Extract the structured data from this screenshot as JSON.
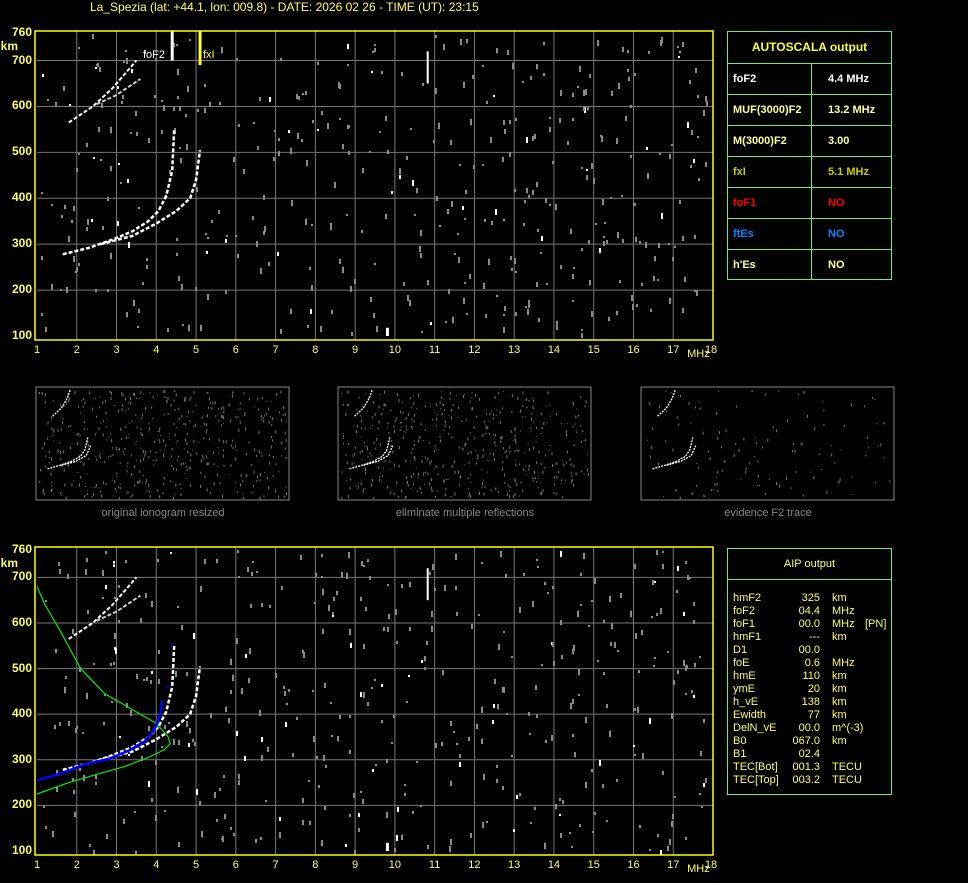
{
  "header": {
    "title": "La_Spezia (lat: +44.1, lon: 009.8) - DATE: 2026 02 26 - TIME (UT): 23:15"
  },
  "axes": {
    "y_unit": "km",
    "x_unit": "MHz",
    "y_ticks": [
      "760",
      "700",
      "600",
      "500",
      "400",
      "300",
      "200",
      "100"
    ],
    "x_ticks": [
      "1",
      "2",
      "3",
      "4",
      "5",
      "6",
      "7",
      "8",
      "9",
      "10",
      "11",
      "12",
      "13",
      "14",
      "15",
      "16",
      "17",
      "18"
    ]
  },
  "top_plot": {
    "foF2_label": "foF2",
    "fxI_label": "fxI",
    "foF2_mhz": 4.4,
    "fxI_mhz": 5.1
  },
  "colors": {
    "axis": "#ffff00",
    "grid": "#777777",
    "trace": "#ffffff",
    "noise": "#8a8a8a",
    "profile": "#00ee00",
    "aip_trace": "#0000ff",
    "table_border": "#66ee77"
  },
  "autoscala": {
    "title": "AUTOSCALA output",
    "rows": [
      {
        "key": "foF2",
        "value": "4.4 MHz",
        "color": "#ffffff"
      },
      {
        "key": "MUF(3000)F2",
        "value": "13.2 MHz",
        "color": "#ffff99"
      },
      {
        "key": "M(3000)F2",
        "value": "3.00",
        "color": "#ffff99"
      },
      {
        "key": "fxI",
        "value": "5.1 MHz",
        "color": "#cccc00"
      },
      {
        "key": "foF1",
        "value": "NO",
        "color": "#ff0000"
      },
      {
        "key": "ftEs",
        "value": "NO",
        "color": "#0088ff"
      },
      {
        "key": "h'Es",
        "value": "NO",
        "color": "#ffff99"
      }
    ]
  },
  "thumbnails": [
    {
      "caption": "original ionogram resized"
    },
    {
      "caption": "eliminate multiple reflections"
    },
    {
      "caption": "evidence F2 trace"
    }
  ],
  "aip": {
    "title": "AIP output",
    "rows": [
      {
        "name": "hmF2",
        "value": "325",
        "unit": "km",
        "extra": ""
      },
      {
        "name": "foF2",
        "value": "04.4",
        "unit": "MHz",
        "extra": ""
      },
      {
        "name": "foF1",
        "value": "00.0",
        "unit": "MHz",
        "extra": "[PN]"
      },
      {
        "name": "hmF1",
        "value": "---",
        "unit": "km",
        "extra": ""
      },
      {
        "name": "D1",
        "value": "00.0",
        "unit": "",
        "extra": ""
      },
      {
        "name": "foE",
        "value": "0.6",
        "unit": "MHz",
        "extra": ""
      },
      {
        "name": "hmE",
        "value": "110",
        "unit": "km",
        "extra": ""
      },
      {
        "name": "ymE",
        "value": "20",
        "unit": "km",
        "extra": ""
      },
      {
        "name": "h_vE",
        "value": "138",
        "unit": "km",
        "extra": ""
      },
      {
        "name": "Ewidth",
        "value": "77",
        "unit": "km",
        "extra": ""
      },
      {
        "name": "DelN_vE",
        "value": "00.0",
        "unit": "m^(-3)",
        "extra": ""
      },
      {
        "name": "B0",
        "value": "067.0",
        "unit": "km",
        "extra": ""
      },
      {
        "name": "B1",
        "value": "02.4",
        "unit": "",
        "extra": ""
      },
      {
        "name": "TEC[Bot]",
        "value": "001.3",
        "unit": "TECU",
        "extra": ""
      },
      {
        "name": "TEC[Top]",
        "value": "003.2",
        "unit": "TECU",
        "extra": ""
      }
    ]
  }
}
